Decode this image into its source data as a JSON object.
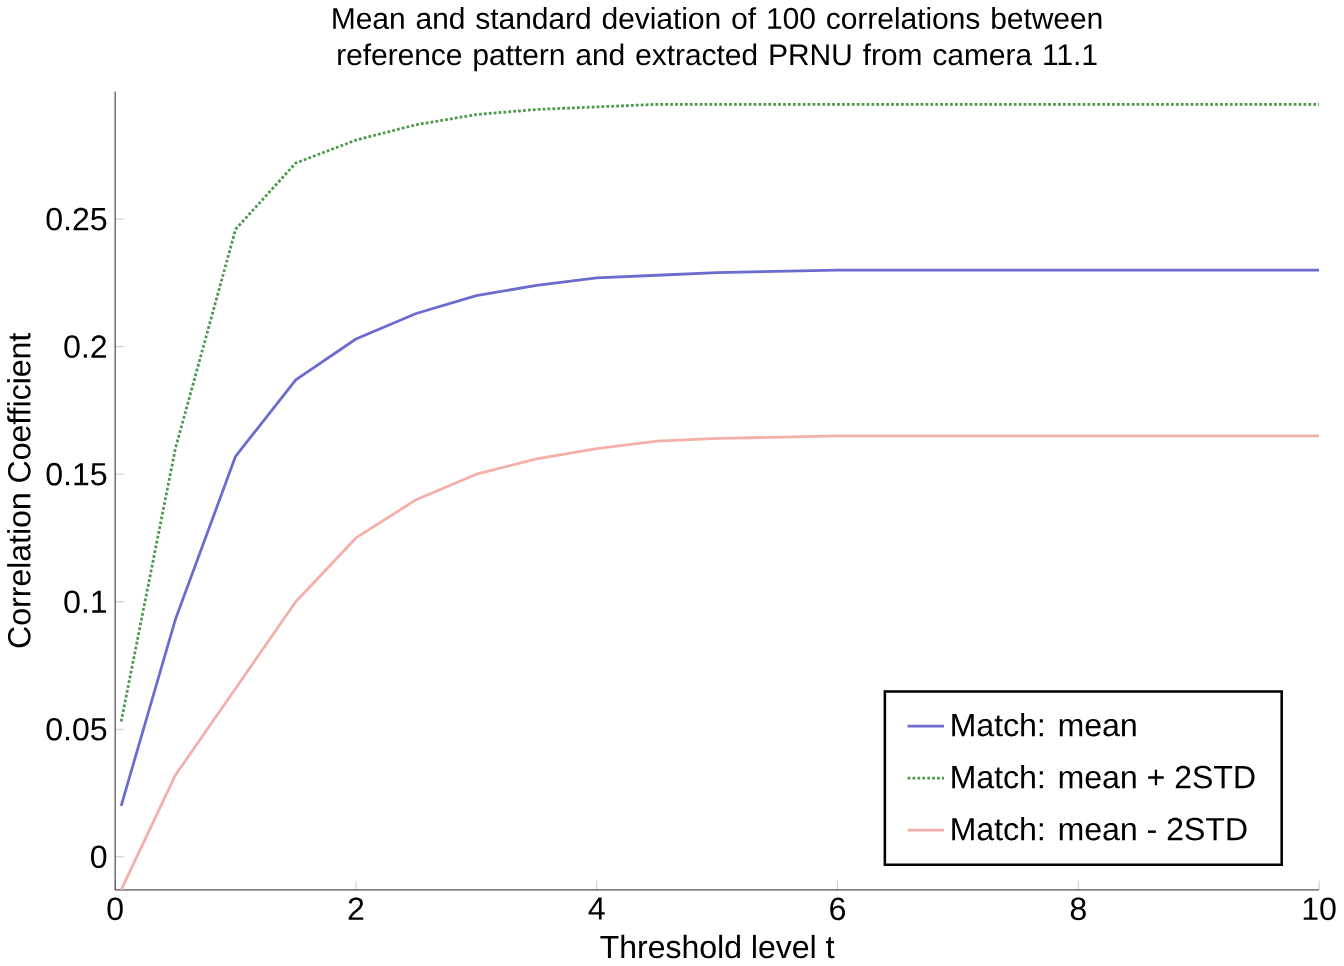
{
  "chart_data": {
    "type": "line",
    "title": "Mean and standard deviation of 100 correlations between reference pattern and extracted PRNU from camera 11.1",
    "xlabel": "Threshold level t",
    "ylabel": "Correlation Coefficient",
    "x": [
      0.05,
      0.5,
      1,
      1.5,
      2,
      2.5,
      3,
      3.5,
      4,
      4.5,
      5,
      6,
      7,
      8,
      9,
      10
    ],
    "series": [
      {
        "name": "Match: mean",
        "color": "#6b6bd0",
        "line_style": "solid",
        "values": [
          0.02,
          0.093,
          0.157,
          0.187,
          0.203,
          0.213,
          0.22,
          0.224,
          0.227,
          0.228,
          0.229,
          0.23,
          0.23,
          0.23,
          0.23,
          0.23
        ]
      },
      {
        "name": "Match: mean + 2STD",
        "color": "#4a9a4a",
        "line_style": "dotted",
        "values": [
          0.053,
          0.16,
          0.246,
          0.272,
          0.281,
          0.287,
          0.291,
          0.293,
          0.294,
          0.295,
          0.295,
          0.295,
          0.295,
          0.295,
          0.295,
          0.295
        ]
      },
      {
        "name": "Match: mean - 2STD",
        "color": "#f4b0a8",
        "line_style": "solid",
        "values": [
          -0.013,
          0.032,
          0.066,
          0.1,
          0.125,
          0.14,
          0.15,
          0.156,
          0.16,
          0.163,
          0.164,
          0.165,
          0.165,
          0.165,
          0.165,
          0.165
        ]
      }
    ],
    "xlim": [
      0,
      10
    ],
    "ylim": [
      -0.013,
      0.3
    ],
    "xticks": [
      0,
      2,
      4,
      6,
      8,
      10
    ],
    "yticks": [
      0,
      0.05,
      0.1,
      0.15,
      0.2,
      0.25
    ],
    "grid": false,
    "legend": "bottom right",
    "marker": "none"
  }
}
